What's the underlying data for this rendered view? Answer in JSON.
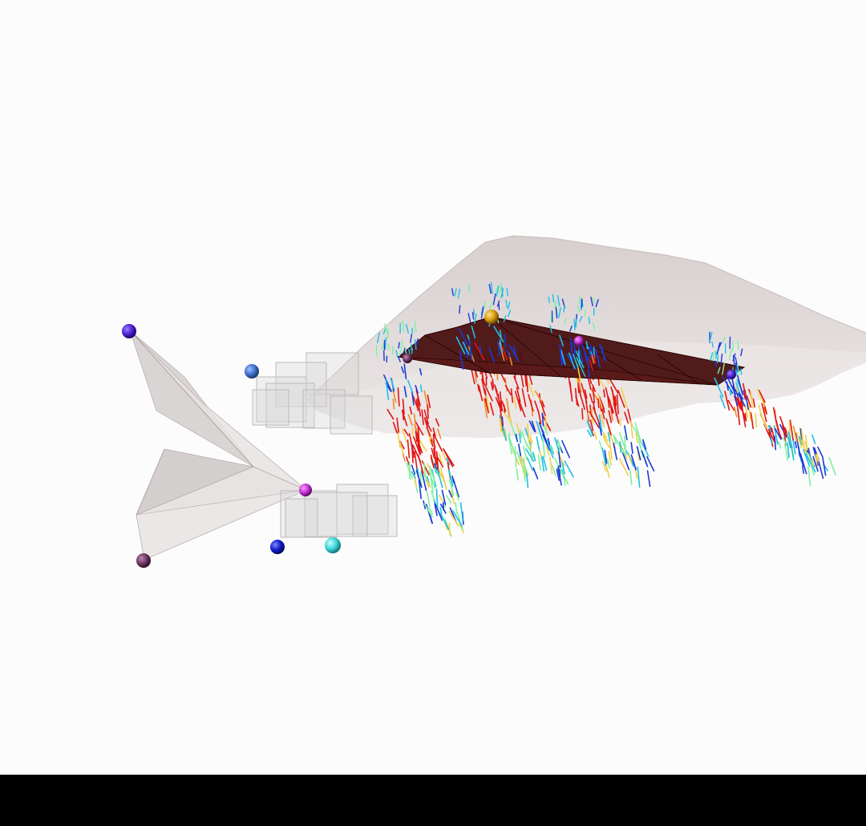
{
  "scene": {
    "background": "#fcfcfc",
    "bottom_bar_color": "#000000",
    "surface_color": "#d9cfcf",
    "panel_color": "#4a1010",
    "frame_color": "#cfcbcb",
    "marker_colors": {
      "violet": "#4b1fd0",
      "steel_blue": "#3d6fc9",
      "magenta": "#c12ed0",
      "plum": "#6b3560",
      "blue": "#1018c8",
      "cyan": "#39d3d6",
      "amber": "#d6990f"
    },
    "flow_colormap": [
      "#1b38d6",
      "#1ec0e6",
      "#7ff0a0",
      "#f2d04a",
      "#f08a2a",
      "#e21414"
    ]
  }
}
